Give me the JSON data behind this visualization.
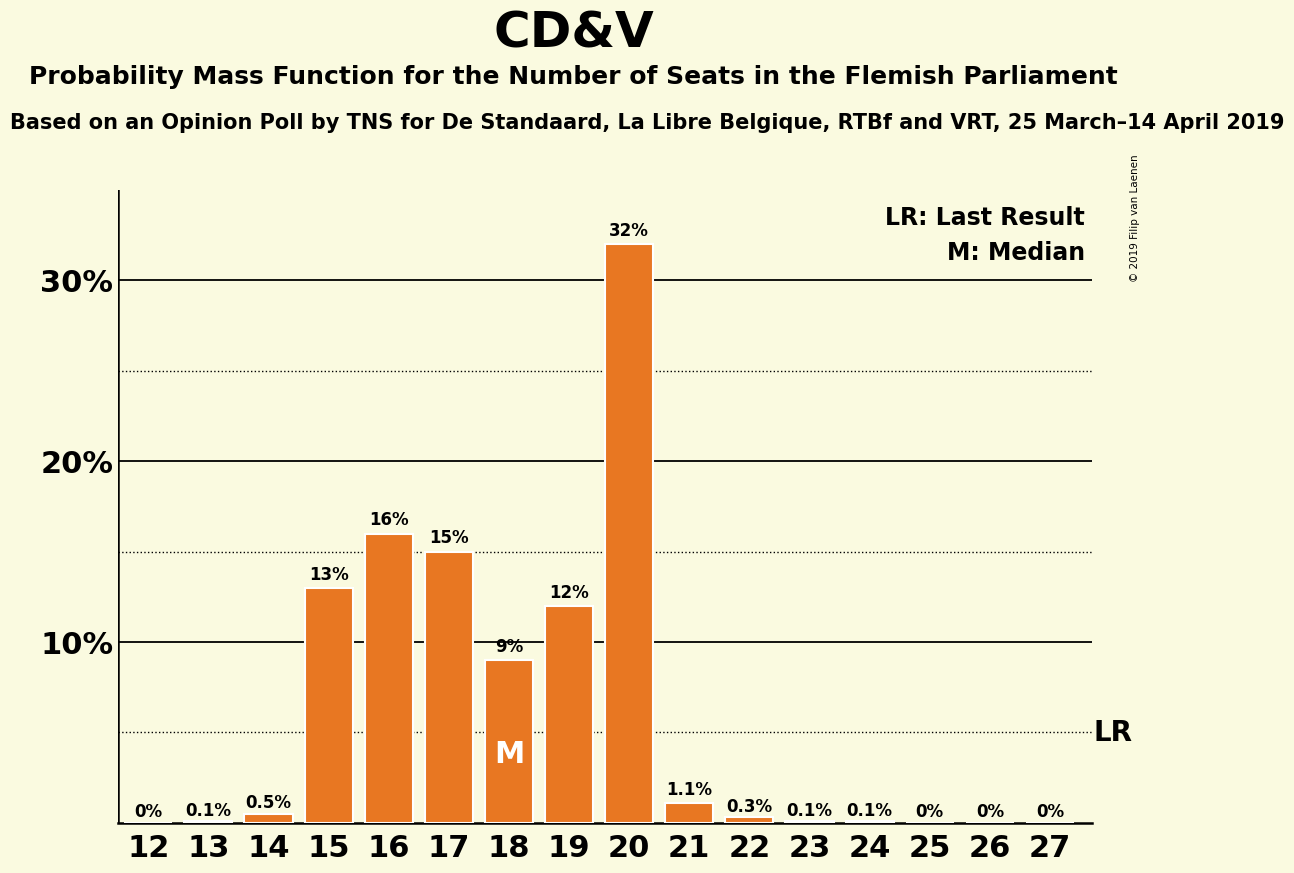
{
  "title": "CD&V",
  "subtitle": "Probability Mass Function for the Number of Seats in the Flemish Parliament",
  "subtitle2": "Based on an Opinion Poll by TNS for De Standaard, La Libre Belgique, RTBf and VRT, 25 March–14 April 2019",
  "copyright": "© 2019 Filip van Laenen",
  "seats": [
    12,
    13,
    14,
    15,
    16,
    17,
    18,
    19,
    20,
    21,
    22,
    23,
    24,
    25,
    26,
    27
  ],
  "values": [
    0.0,
    0.1,
    0.5,
    13.0,
    16.0,
    15.0,
    9.0,
    12.0,
    32.0,
    1.1,
    0.3,
    0.1,
    0.1,
    0.0,
    0.0,
    0.0
  ],
  "labels": [
    "0%",
    "0.1%",
    "0.5%",
    "13%",
    "16%",
    "15%",
    "9%",
    "12%",
    "32%",
    "1.1%",
    "0.3%",
    "0.1%",
    "0.1%",
    "0%",
    "0%",
    "0%"
  ],
  "bar_color": "#E87722",
  "background_color": "#FAFAE0",
  "median_seat": 18,
  "lr_value": 5.0,
  "ylabel_ticks": [
    10,
    20,
    30
  ],
  "solid_lines": [
    10,
    20,
    30
  ],
  "dotted_lines": [
    5,
    15,
    25
  ],
  "ylim": [
    0,
    35
  ],
  "lr_label": "LR: Last Result",
  "median_label": "M: Median",
  "lr_annotation": "LR",
  "median_annotation": "M",
  "title_fontsize": 36,
  "subtitle_fontsize": 18,
  "subtitle2_fontsize": 15,
  "tick_fontsize": 22,
  "label_fontsize": 12,
  "legend_fontsize": 17
}
